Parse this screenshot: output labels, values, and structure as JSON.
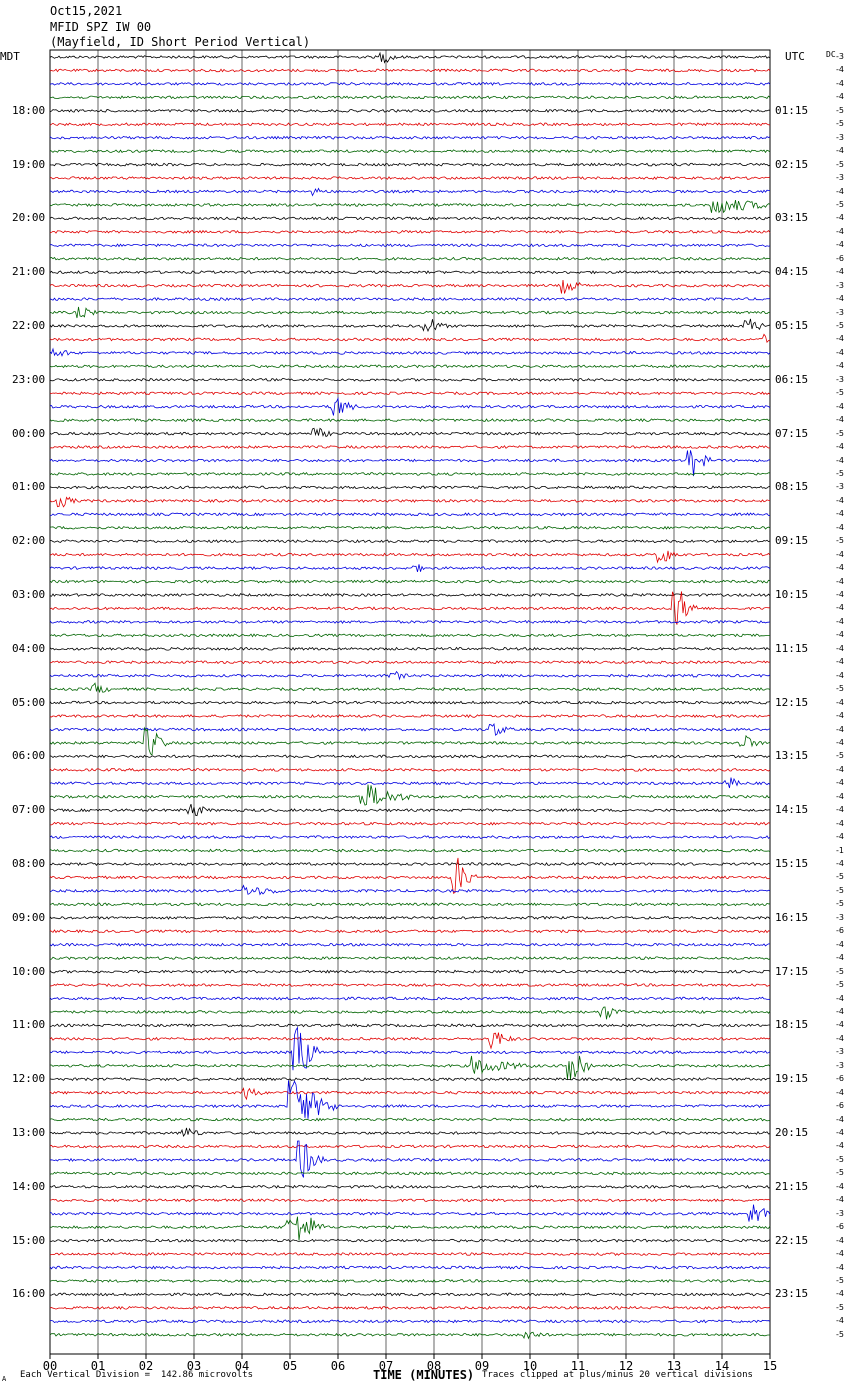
{
  "header": {
    "date": "Oct15,2021",
    "station": "MFID SPZ IW 00",
    "description": "(Mayfield, ID Short Period Vertical)"
  },
  "left_zone": "MDT",
  "right_zone": "UTC",
  "dc_label": "DC",
  "footer": {
    "scale_note": "Each Vertical Division =  142.86 microvolts",
    "clip_note": "Traces clipped at plus/minus 20 vertical divisions",
    "corner_mark": "A"
  },
  "chart_data": {
    "type": "helicorder",
    "xlabel": "TIME (MINUTES)",
    "x_ticks": [
      "00",
      "01",
      "02",
      "03",
      "04",
      "05",
      "06",
      "07",
      "08",
      "09",
      "10",
      "11",
      "12",
      "13",
      "14",
      "15"
    ],
    "xlim": [
      0,
      15
    ],
    "trace_colors": [
      "#000000",
      "#e00000",
      "#0000e0",
      "#006400"
    ],
    "trace_count": 96,
    "left_hour_labels": [
      "18:00",
      "19:00",
      "20:00",
      "21:00",
      "22:00",
      "23:00",
      "00:00",
      "01:00",
      "02:00",
      "03:00",
      "04:00",
      "05:00",
      "06:00",
      "07:00",
      "08:00",
      "09:00",
      "10:00",
      "11:00",
      "12:00",
      "13:00",
      "14:00",
      "15:00",
      "16:00"
    ],
    "right_hour_labels": [
      "01:15",
      "02:15",
      "03:15",
      "04:15",
      "05:15",
      "06:15",
      "07:15",
      "08:15",
      "09:15",
      "10:15",
      "11:15",
      "12:15",
      "13:15",
      "14:15",
      "15:15",
      "16:15",
      "17:15",
      "18:15",
      "19:15",
      "20:15",
      "21:15",
      "22:15",
      "23:15"
    ],
    "dc_offsets": [
      "-3",
      "-4",
      "-4",
      "-4",
      "-5",
      "-5",
      "-3",
      "-4",
      "-5",
      "-3",
      "-4",
      "-5",
      "-4",
      "-4",
      "-4",
      "-6",
      "-4",
      "-3",
      "-4",
      "-3",
      "-5",
      "-4",
      "-4",
      "-4",
      "-3",
      "-5",
      "-4",
      "-4",
      "-5",
      "-4",
      "-4",
      "-5",
      "-3",
      "-4",
      "-4",
      "-4",
      "-5",
      "-4",
      "-4",
      "-4",
      "-4",
      "-4",
      "-4",
      "-4",
      "-4",
      "-4",
      "-4",
      "-5",
      "-4",
      "-4",
      "-4",
      "-4",
      "-5",
      "-4",
      "-4",
      "-4",
      "-4",
      "-4",
      "-4",
      "-1",
      "-4",
      "-5",
      "-5",
      "-5",
      "-3",
      "-6",
      "-4",
      "-4",
      "-5",
      "-5",
      "-4",
      "-4",
      "-4",
      "-4",
      "-3",
      "-3",
      "-6",
      "-4",
      "-6",
      "-4",
      "-4",
      "-4",
      "-5",
      "-5",
      "-4",
      "-4",
      "-3",
      "-6",
      "-4",
      "-4",
      "-4",
      "-5",
      "-4",
      "-5",
      "-4",
      "-5"
    ],
    "events": [
      {
        "trace": 0,
        "minute": 6.9,
        "amp": 6
      },
      {
        "trace": 10,
        "minute": 5.5,
        "amp": 4
      },
      {
        "trace": 11,
        "minute": 13.8,
        "amp": 10,
        "duration": 1.8
      },
      {
        "trace": 17,
        "minute": 10.7,
        "amp": 8
      },
      {
        "trace": 19,
        "minute": 0.6,
        "amp": 6
      },
      {
        "trace": 20,
        "minute": 7.8,
        "amp": 10
      },
      {
        "trace": 20,
        "minute": 14.5,
        "amp": 8
      },
      {
        "trace": 21,
        "minute": 14.9,
        "amp": 6
      },
      {
        "trace": 22,
        "minute": 0.1,
        "amp": 5
      },
      {
        "trace": 26,
        "minute": 5.9,
        "amp": 12
      },
      {
        "trace": 28,
        "minute": 5.5,
        "amp": 6
      },
      {
        "trace": 30,
        "minute": 13.3,
        "amp": 16
      },
      {
        "trace": 33,
        "minute": 0.2,
        "amp": 6
      },
      {
        "trace": 37,
        "minute": 12.7,
        "amp": 9
      },
      {
        "trace": 38,
        "minute": 7.6,
        "amp": 4
      },
      {
        "trace": 41,
        "minute": 13.0,
        "amp": 22
      },
      {
        "trace": 46,
        "minute": 7.1,
        "amp": 5
      },
      {
        "trace": 47,
        "minute": 0.9,
        "amp": 6
      },
      {
        "trace": 50,
        "minute": 9.2,
        "amp": 7
      },
      {
        "trace": 51,
        "minute": 2.0,
        "amp": 16
      },
      {
        "trace": 51,
        "minute": 14.4,
        "amp": 8
      },
      {
        "trace": 54,
        "minute": 14.1,
        "amp": 6
      },
      {
        "trace": 55,
        "minute": 6.5,
        "amp": 14,
        "duration": 1.2
      },
      {
        "trace": 56,
        "minute": 2.9,
        "amp": 8
      },
      {
        "trace": 61,
        "minute": 8.4,
        "amp": 20
      },
      {
        "trace": 62,
        "minute": 4.0,
        "amp": 6,
        "duration": 1.5
      },
      {
        "trace": 71,
        "minute": 11.5,
        "amp": 8
      },
      {
        "trace": 73,
        "minute": 9.2,
        "amp": 10
      },
      {
        "trace": 74,
        "minute": 5.1,
        "amp": 30
      },
      {
        "trace": 75,
        "minute": 8.8,
        "amp": 10,
        "duration": 1.5
      },
      {
        "trace": 75,
        "minute": 10.8,
        "amp": 26
      },
      {
        "trace": 77,
        "minute": 4.0,
        "amp": 8
      },
      {
        "trace": 78,
        "minute": 5.0,
        "amp": 30,
        "duration": 1.0
      },
      {
        "trace": 80,
        "minute": 2.8,
        "amp": 6
      },
      {
        "trace": 82,
        "minute": 5.2,
        "amp": 20
      },
      {
        "trace": 86,
        "minute": 14.6,
        "amp": 12
      },
      {
        "trace": 87,
        "minute": 5.2,
        "amp": 18
      },
      {
        "trace": 87,
        "minute": 4.9,
        "amp": 10
      },
      {
        "trace": 95,
        "minute": 9.9,
        "amp": 6
      }
    ]
  }
}
